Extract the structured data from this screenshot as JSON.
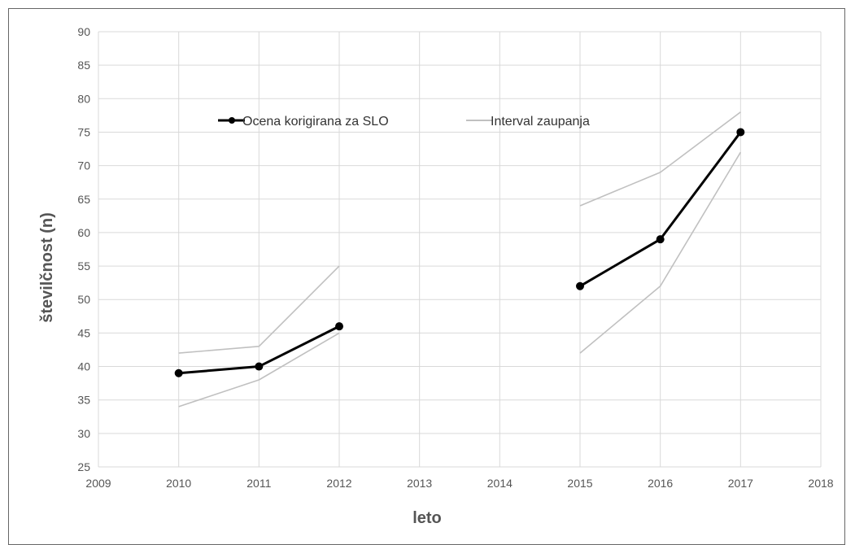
{
  "chart_data": {
    "type": "line",
    "xlabel": "leto",
    "ylabel": "številčnost (n)",
    "xlim": [
      2009,
      2018
    ],
    "ylim": [
      25,
      90
    ],
    "xticks": [
      2009,
      2010,
      2011,
      2012,
      2013,
      2014,
      2015,
      2016,
      2017,
      2018
    ],
    "yticks": [
      25,
      30,
      35,
      40,
      45,
      50,
      55,
      60,
      65,
      70,
      75,
      80,
      85,
      90
    ],
    "grid": true,
    "legend_position": "top-center",
    "series": [
      {
        "name": "Ocena korigirana za SLO",
        "color": "#000000",
        "markers": true,
        "segments": [
          [
            [
              2010,
              39
            ],
            [
              2011,
              40
            ],
            [
              2012,
              46
            ]
          ],
          [
            [
              2015,
              52
            ],
            [
              2016,
              59
            ],
            [
              2017,
              75
            ]
          ]
        ]
      },
      {
        "name": "Interval zaupanja",
        "color": "#c0c0c0",
        "markers": false,
        "segments": [
          [
            [
              2010,
              42
            ],
            [
              2011,
              43
            ],
            [
              2012,
              55
            ]
          ],
          [
            [
              2010,
              34
            ],
            [
              2011,
              38
            ],
            [
              2012,
              45
            ]
          ],
          [
            [
              2015,
              64
            ],
            [
              2016,
              69
            ],
            [
              2017,
              78
            ]
          ],
          [
            [
              2015,
              42
            ],
            [
              2016,
              52
            ],
            [
              2017,
              72
            ]
          ]
        ]
      }
    ]
  }
}
